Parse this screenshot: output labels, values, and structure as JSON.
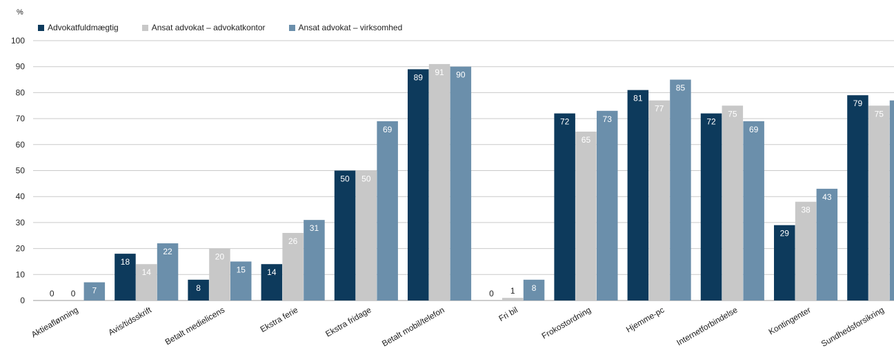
{
  "chart_data": {
    "type": "bar",
    "ylabel": "%",
    "ylim": [
      0,
      100
    ],
    "yticks": [
      0,
      10,
      20,
      30,
      40,
      50,
      60,
      70,
      80,
      90,
      100
    ],
    "grid": true,
    "legend_position": "top-left",
    "categories": [
      "Aktieaflønning",
      "Avis/tidsskrift",
      "Betalt medielicens",
      "Ekstra ferie",
      "Ekstra fridage",
      "Betalt mobil/telefon",
      "Fri bil",
      "Frokostordning",
      "Hjemme-pc",
      "Internetforbindelse",
      "Kontingenter",
      "Sundhedsforsikring"
    ],
    "series": [
      {
        "name": "Advokatfuldmægtig",
        "color": "#0d3a5c",
        "values": [
          0,
          18,
          8,
          14,
          50,
          89,
          0,
          72,
          81,
          72,
          29,
          79
        ]
      },
      {
        "name": "Ansat advokat – advokatkontor",
        "color": "#c8c8c8",
        "values": [
          0,
          14,
          20,
          26,
          50,
          91,
          1,
          65,
          77,
          75,
          38,
          75
        ]
      },
      {
        "name": "Ansat advokat – virksomhed",
        "color": "#6b8fab",
        "values": [
          7,
          22,
          15,
          31,
          69,
          90,
          8,
          73,
          85,
          69,
          43,
          77
        ]
      }
    ]
  }
}
